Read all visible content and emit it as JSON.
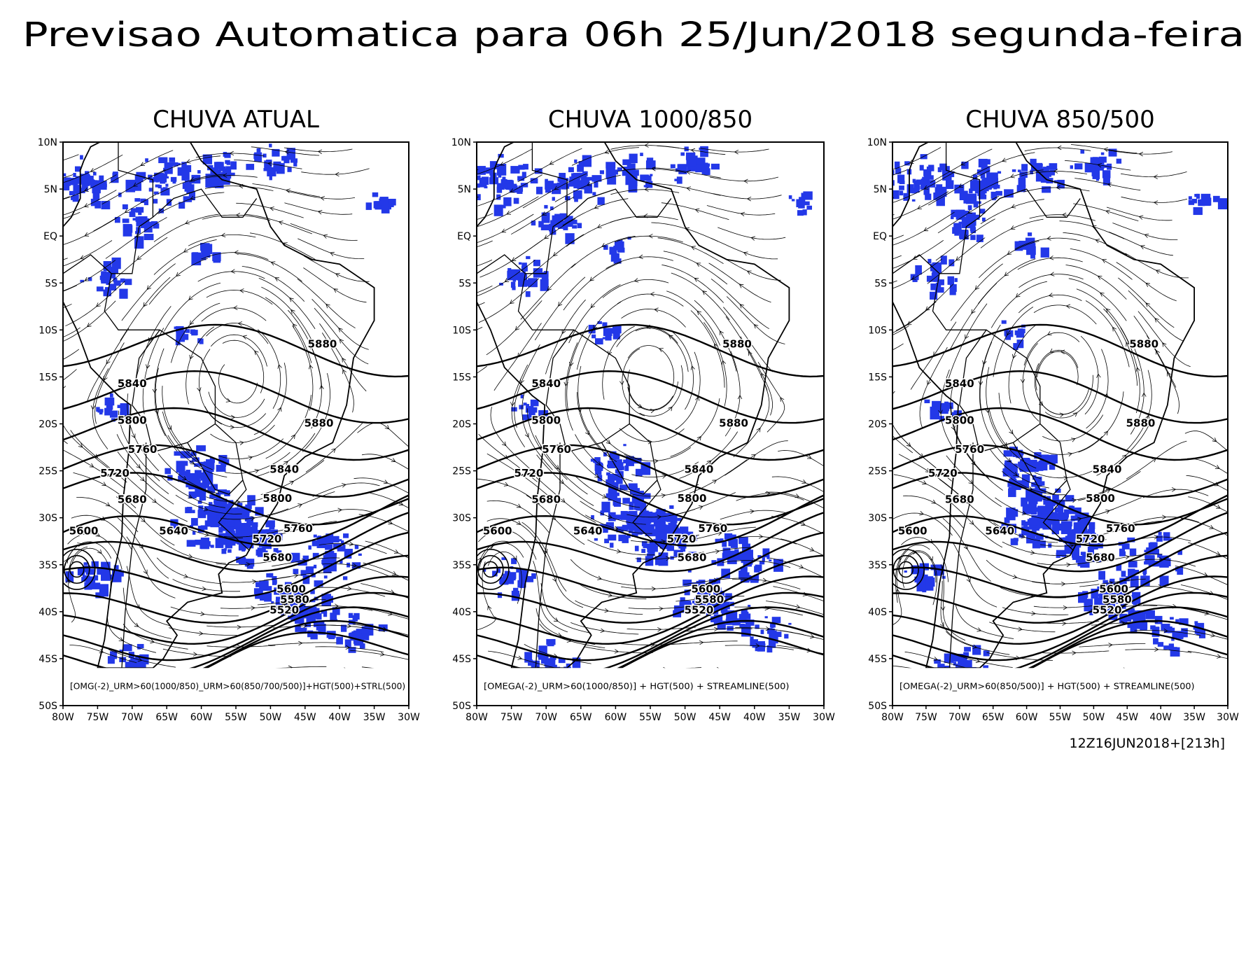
{
  "title": "Previsao Automatica para 06h 25/Jun/2018 segunda-feira",
  "lat_labels": [
    "10N",
    "5N",
    "EQ",
    "5S",
    "10S",
    "15S",
    "20S",
    "25S",
    "30S",
    "35S",
    "40S",
    "45S",
    "50S"
  ],
  "lon_labels": [
    "80W",
    "75W",
    "70W",
    "65W",
    "60W",
    "55W",
    "50W",
    "45W",
    "40W",
    "35W",
    "30W"
  ],
  "panels": [
    {
      "title": "CHUVA ATUAL",
      "legend": "[OMG(-2)_URM>60(1000/850)_URM>60(850/700/500)]+HGT(500)+STRL(500)",
      "contour_labels": [
        "5880",
        "5880",
        "5840",
        "5800",
        "5760",
        "5720",
        "5680",
        "5640",
        "5600",
        "5840",
        "5800",
        "5760",
        "5720",
        "5680",
        "5600",
        "5580",
        "5520"
      ]
    },
    {
      "title": "CHUVA 1000/850",
      "legend": "[OMEGA(-2)_URM>60(1000/850)] + HGT(500) + STREAMLINE(500)",
      "contour_labels": [
        "5880",
        "5880",
        "5840",
        "5800",
        "5760",
        "5720",
        "5680",
        "5640",
        "5600",
        "5840",
        "5800",
        "5760",
        "5720",
        "5680",
        "5600",
        "5580",
        "5520"
      ]
    },
    {
      "title": "CHUVA 850/500",
      "legend": "[OMEGA(-2)_URM>60(850/500)] + HGT(500) + STREAMLINE(500)",
      "contour_labels": [
        "5880",
        "5880",
        "5840",
        "5800",
        "5760",
        "5720",
        "5680",
        "5640",
        "5600",
        "5840",
        "5800",
        "5760",
        "5720",
        "5680",
        "5600",
        "5580",
        "5520"
      ]
    }
  ],
  "run_stamp": "12Z16JUN2018+[213h]"
}
